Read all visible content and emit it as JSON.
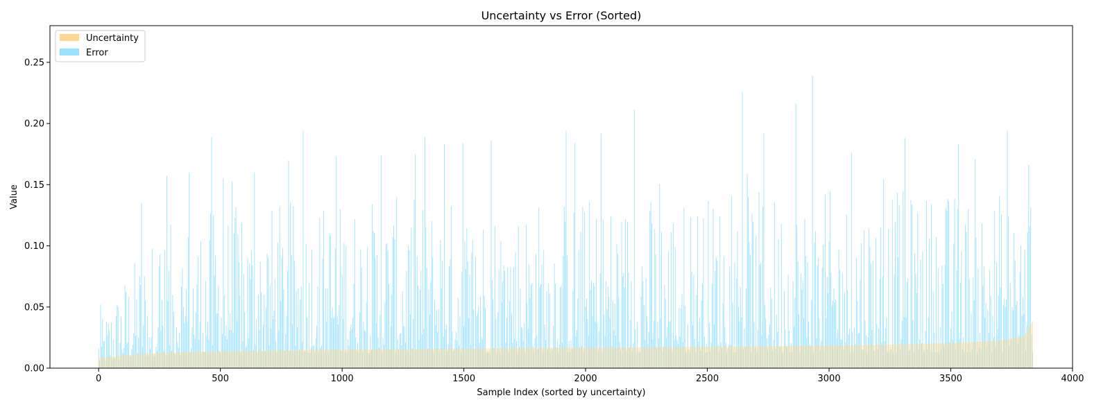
{
  "chart_data": {
    "type": "bar",
    "title": "Uncertainty vs Error (Sorted)",
    "xlabel": "Sample Index (sorted by uncertainty)",
    "ylabel": "Value",
    "xlim": [
      -200,
      4000
    ],
    "ylim": [
      0,
      0.28
    ],
    "xticks": [
      0,
      500,
      1000,
      1500,
      2000,
      2500,
      3000,
      3500,
      4000
    ],
    "xtick_labels": [
      "0",
      "500",
      "1000",
      "1500",
      "2000",
      "2500",
      "3000",
      "3500",
      "4000"
    ],
    "yticks": [
      0.0,
      0.05,
      0.1,
      0.15,
      0.2,
      0.25
    ],
    "ytick_labels": [
      "0.00",
      "0.05",
      "0.10",
      "0.15",
      "0.20",
      "0.25"
    ],
    "grid": false,
    "legend_position": "top-left",
    "n_samples": 3840,
    "series": [
      {
        "name": "Uncertainty",
        "color": "#ffd27f",
        "x": [
          0,
          100,
          200,
          400,
          600,
          800,
          1000,
          1500,
          2000,
          2500,
          3000,
          3300,
          3500,
          3700,
          3800,
          3840
        ],
        "values": [
          0.008,
          0.0105,
          0.012,
          0.0135,
          0.0142,
          0.0148,
          0.0152,
          0.016,
          0.0168,
          0.0175,
          0.0185,
          0.0195,
          0.0205,
          0.0225,
          0.026,
          0.04
        ]
      },
      {
        "name": "Error",
        "color": "#87dcff",
        "x": [
          0,
          100,
          200,
          300,
          400,
          500,
          700,
          1000,
          1500,
          2000,
          2500,
          3000,
          3500,
          3840
        ],
        "values": [
          0.02,
          0.045,
          0.062,
          0.07,
          0.075,
          0.078,
          0.08,
          0.082,
          0.083,
          0.084,
          0.085,
          0.086,
          0.086,
          0.086
        ],
        "peaks": [
          {
            "x": 8,
            "value": 0.052
          },
          {
            "x": 175,
            "value": 0.135
          },
          {
            "x": 280,
            "value": 0.157
          },
          {
            "x": 370,
            "value": 0.16
          },
          {
            "x": 465,
            "value": 0.189
          },
          {
            "x": 510,
            "value": 0.155
          },
          {
            "x": 640,
            "value": 0.16
          },
          {
            "x": 780,
            "value": 0.17
          },
          {
            "x": 840,
            "value": 0.194
          },
          {
            "x": 975,
            "value": 0.173
          },
          {
            "x": 1160,
            "value": 0.174
          },
          {
            "x": 1340,
            "value": 0.189
          },
          {
            "x": 1420,
            "value": 0.183
          },
          {
            "x": 1495,
            "value": 0.184
          },
          {
            "x": 1610,
            "value": 0.186
          },
          {
            "x": 1920,
            "value": 0.194
          },
          {
            "x": 1955,
            "value": 0.184
          },
          {
            "x": 2065,
            "value": 0.192
          },
          {
            "x": 2200,
            "value": 0.211
          },
          {
            "x": 2645,
            "value": 0.226
          },
          {
            "x": 2730,
            "value": 0.192
          },
          {
            "x": 2865,
            "value": 0.216
          },
          {
            "x": 2930,
            "value": 0.239
          },
          {
            "x": 3090,
            "value": 0.176
          },
          {
            "x": 3310,
            "value": 0.188
          },
          {
            "x": 3530,
            "value": 0.183
          },
          {
            "x": 3730,
            "value": 0.194
          },
          {
            "x": 3820,
            "value": 0.166
          }
        ]
      }
    ]
  }
}
